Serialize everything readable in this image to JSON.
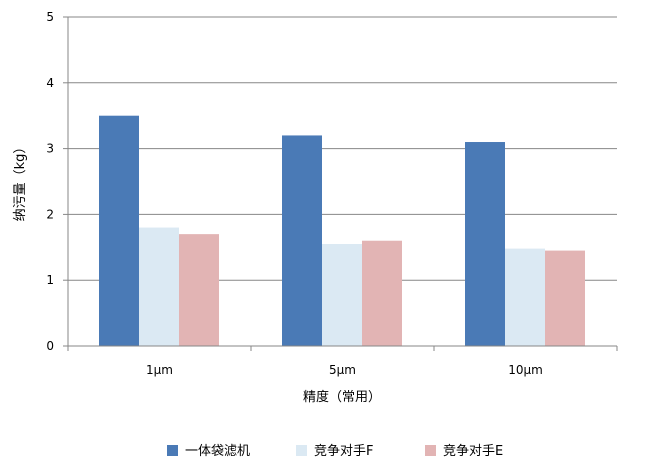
{
  "chart_data": {
    "type": "bar",
    "title": "",
    "xlabel": "精度（常用）",
    "ylabel": "纳污量（kg）",
    "categories": [
      "1μm",
      "5μm",
      "10μm"
    ],
    "series": [
      {
        "name": "一体袋滤机",
        "values": [
          3.5,
          3.2,
          3.1
        ],
        "color": "#4a7ab6"
      },
      {
        "name": "竞争对手F",
        "values": [
          1.8,
          1.55,
          1.48
        ],
        "color": "#dbe9f3"
      },
      {
        "name": "竞争对手E",
        "values": [
          1.7,
          1.6,
          1.45
        ],
        "color": "#e2b4b4"
      }
    ],
    "ylim": [
      0,
      5
    ],
    "yticks": [
      0,
      1,
      2,
      3,
      4,
      5
    ],
    "grid": true,
    "legend": "bottom"
  }
}
